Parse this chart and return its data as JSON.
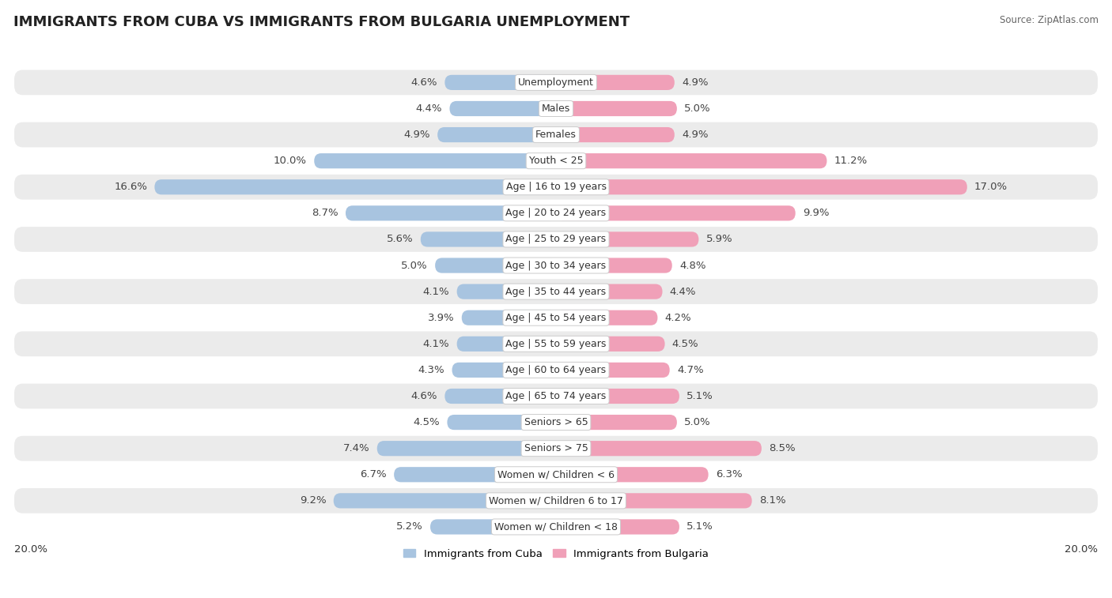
{
  "title": "IMMIGRANTS FROM CUBA VS IMMIGRANTS FROM BULGARIA UNEMPLOYMENT",
  "source": "Source: ZipAtlas.com",
  "categories": [
    "Unemployment",
    "Males",
    "Females",
    "Youth < 25",
    "Age | 16 to 19 years",
    "Age | 20 to 24 years",
    "Age | 25 to 29 years",
    "Age | 30 to 34 years",
    "Age | 35 to 44 years",
    "Age | 45 to 54 years",
    "Age | 55 to 59 years",
    "Age | 60 to 64 years",
    "Age | 65 to 74 years",
    "Seniors > 65",
    "Seniors > 75",
    "Women w/ Children < 6",
    "Women w/ Children 6 to 17",
    "Women w/ Children < 18"
  ],
  "cuba_values": [
    4.6,
    4.4,
    4.9,
    10.0,
    16.6,
    8.7,
    5.6,
    5.0,
    4.1,
    3.9,
    4.1,
    4.3,
    4.6,
    4.5,
    7.4,
    6.7,
    9.2,
    5.2
  ],
  "bulgaria_values": [
    4.9,
    5.0,
    4.9,
    11.2,
    17.0,
    9.9,
    5.9,
    4.8,
    4.4,
    4.2,
    4.5,
    4.7,
    5.1,
    5.0,
    8.5,
    6.3,
    8.1,
    5.1
  ],
  "cuba_color": "#a8c4e0",
  "bulgaria_color": "#f0a0b8",
  "bg_row_stripe": "#ebebeb",
  "bg_row_plain": "#ffffff",
  "bar_height": 0.58,
  "max_value": 20.0,
  "legend_cuba": "Immigrants from Cuba",
  "legend_bulgaria": "Immigrants from Bulgaria",
  "title_fontsize": 13,
  "label_fontsize": 9.5,
  "category_fontsize": 9,
  "source_fontsize": 8.5
}
